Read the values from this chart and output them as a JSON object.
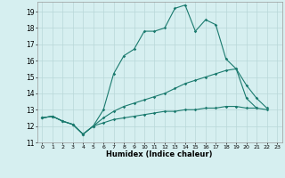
{
  "xlabel": "Humidex (Indice chaleur)",
  "bg_color": "#d6eff0",
  "grid_color": "#b8d8d8",
  "line_color": "#1a7a6e",
  "xlim": [
    -0.5,
    23.5
  ],
  "ylim": [
    11,
    19.6
  ],
  "xticks": [
    0,
    1,
    2,
    3,
    4,
    5,
    6,
    7,
    8,
    9,
    10,
    11,
    12,
    13,
    14,
    15,
    16,
    17,
    18,
    19,
    20,
    21,
    22,
    23
  ],
  "yticks": [
    11,
    12,
    13,
    14,
    15,
    16,
    17,
    18,
    19
  ],
  "line1_x": [
    0,
    1,
    2,
    3,
    4,
    5,
    6,
    7,
    8,
    9,
    10,
    11,
    12,
    13,
    14,
    15,
    16,
    17,
    18,
    19,
    20,
    21
  ],
  "line1_y": [
    12.5,
    12.6,
    12.3,
    12.1,
    11.5,
    12.0,
    13.0,
    15.2,
    16.3,
    16.7,
    17.8,
    17.8,
    18.0,
    19.2,
    19.4,
    17.8,
    18.5,
    18.2,
    16.1,
    15.5,
    13.7,
    13.1
  ],
  "line2_x": [
    0,
    1,
    2,
    3,
    4,
    5,
    6,
    7,
    8,
    9,
    10,
    11,
    12,
    13,
    14,
    15,
    16,
    17,
    18,
    19,
    20,
    21,
    22
  ],
  "line2_y": [
    12.5,
    12.6,
    12.3,
    12.1,
    11.5,
    12.0,
    12.5,
    12.9,
    13.2,
    13.4,
    13.6,
    13.8,
    14.0,
    14.3,
    14.6,
    14.8,
    15.0,
    15.2,
    15.4,
    15.5,
    14.5,
    13.7,
    13.1
  ],
  "line3_x": [
    0,
    1,
    2,
    3,
    4,
    5,
    6,
    7,
    8,
    9,
    10,
    11,
    12,
    13,
    14,
    15,
    16,
    17,
    18,
    19,
    20,
    21,
    22
  ],
  "line3_y": [
    12.5,
    12.6,
    12.3,
    12.1,
    11.5,
    12.0,
    12.2,
    12.4,
    12.5,
    12.6,
    12.7,
    12.8,
    12.9,
    12.9,
    13.0,
    13.0,
    13.1,
    13.1,
    13.2,
    13.2,
    13.1,
    13.1,
    13.0
  ]
}
